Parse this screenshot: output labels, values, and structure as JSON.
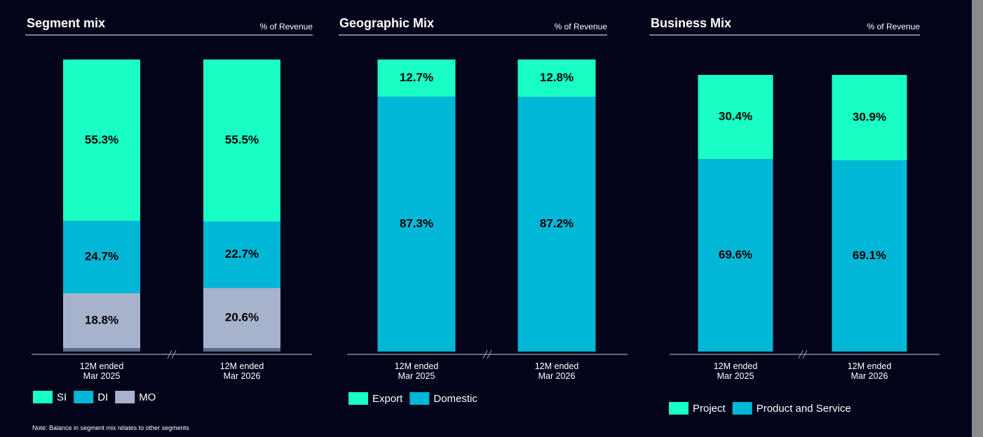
{
  "chart_data": [
    {
      "type": "stacked_bar",
      "title": "Segment mix",
      "subtitle": "% of Revenue",
      "categories": [
        "12M ended Mar 2025",
        "12M ended Mar 2026"
      ],
      "ylim": [
        0,
        100
      ],
      "series": [
        {
          "name": null,
          "color": "#5b6a8c",
          "values": [
            1.2,
            1.2
          ]
        },
        {
          "name": "MO",
          "color": "#a7b3cc",
          "values": [
            18.8,
            20.6
          ],
          "value_labels": [
            "18.8%",
            "20.6%"
          ]
        },
        {
          "name": "DI",
          "color": "#00b7d7",
          "values": [
            24.7,
            22.7
          ],
          "value_labels": [
            "24.7%",
            "22.7%"
          ]
        },
        {
          "name": "SI",
          "color": "#19ffc6",
          "values": [
            55.3,
            55.5
          ],
          "value_labels": [
            "55.3%",
            "55.5%"
          ]
        }
      ],
      "legend_order": [
        "SI",
        "DI",
        "MO"
      ]
    },
    {
      "type": "stacked_bar",
      "title": "Geographic Mix",
      "subtitle": "% of Revenue",
      "categories": [
        "12M ended Mar 2025",
        "12M ended Mar 2026"
      ],
      "ylim": [
        0,
        100
      ],
      "series": [
        {
          "name": "Domestic",
          "color": "#00b7d7",
          "values": [
            87.3,
            87.2
          ],
          "value_labels": [
            "87.3%",
            "87.2%"
          ]
        },
        {
          "name": "Export",
          "color": "#19ffc6",
          "values": [
            12.7,
            12.8
          ],
          "value_labels": [
            "12.7%",
            "12.8%"
          ]
        }
      ],
      "legend_order": [
        "Export",
        "Domestic"
      ]
    },
    {
      "type": "stacked_bar",
      "title": "Business Mix",
      "subtitle": "% of Revenue",
      "categories": [
        "12M ended Mar 2025",
        "12M ended Mar 2026"
      ],
      "ylim": [
        0,
        100
      ],
      "series": [
        {
          "name": "Product and Service",
          "color": "#00b7d7",
          "values": [
            69.6,
            69.1
          ],
          "value_labels": [
            "69.6%",
            "69.1%"
          ]
        },
        {
          "name": "Project",
          "color": "#19ffc6",
          "values": [
            30.4,
            30.9
          ],
          "value_labels": [
            "30.4%",
            "30.9%"
          ]
        }
      ],
      "legend_order": [
        "Project",
        "Product and Service"
      ]
    }
  ],
  "note": "Note: Balance in segment mix relates to other segments"
}
